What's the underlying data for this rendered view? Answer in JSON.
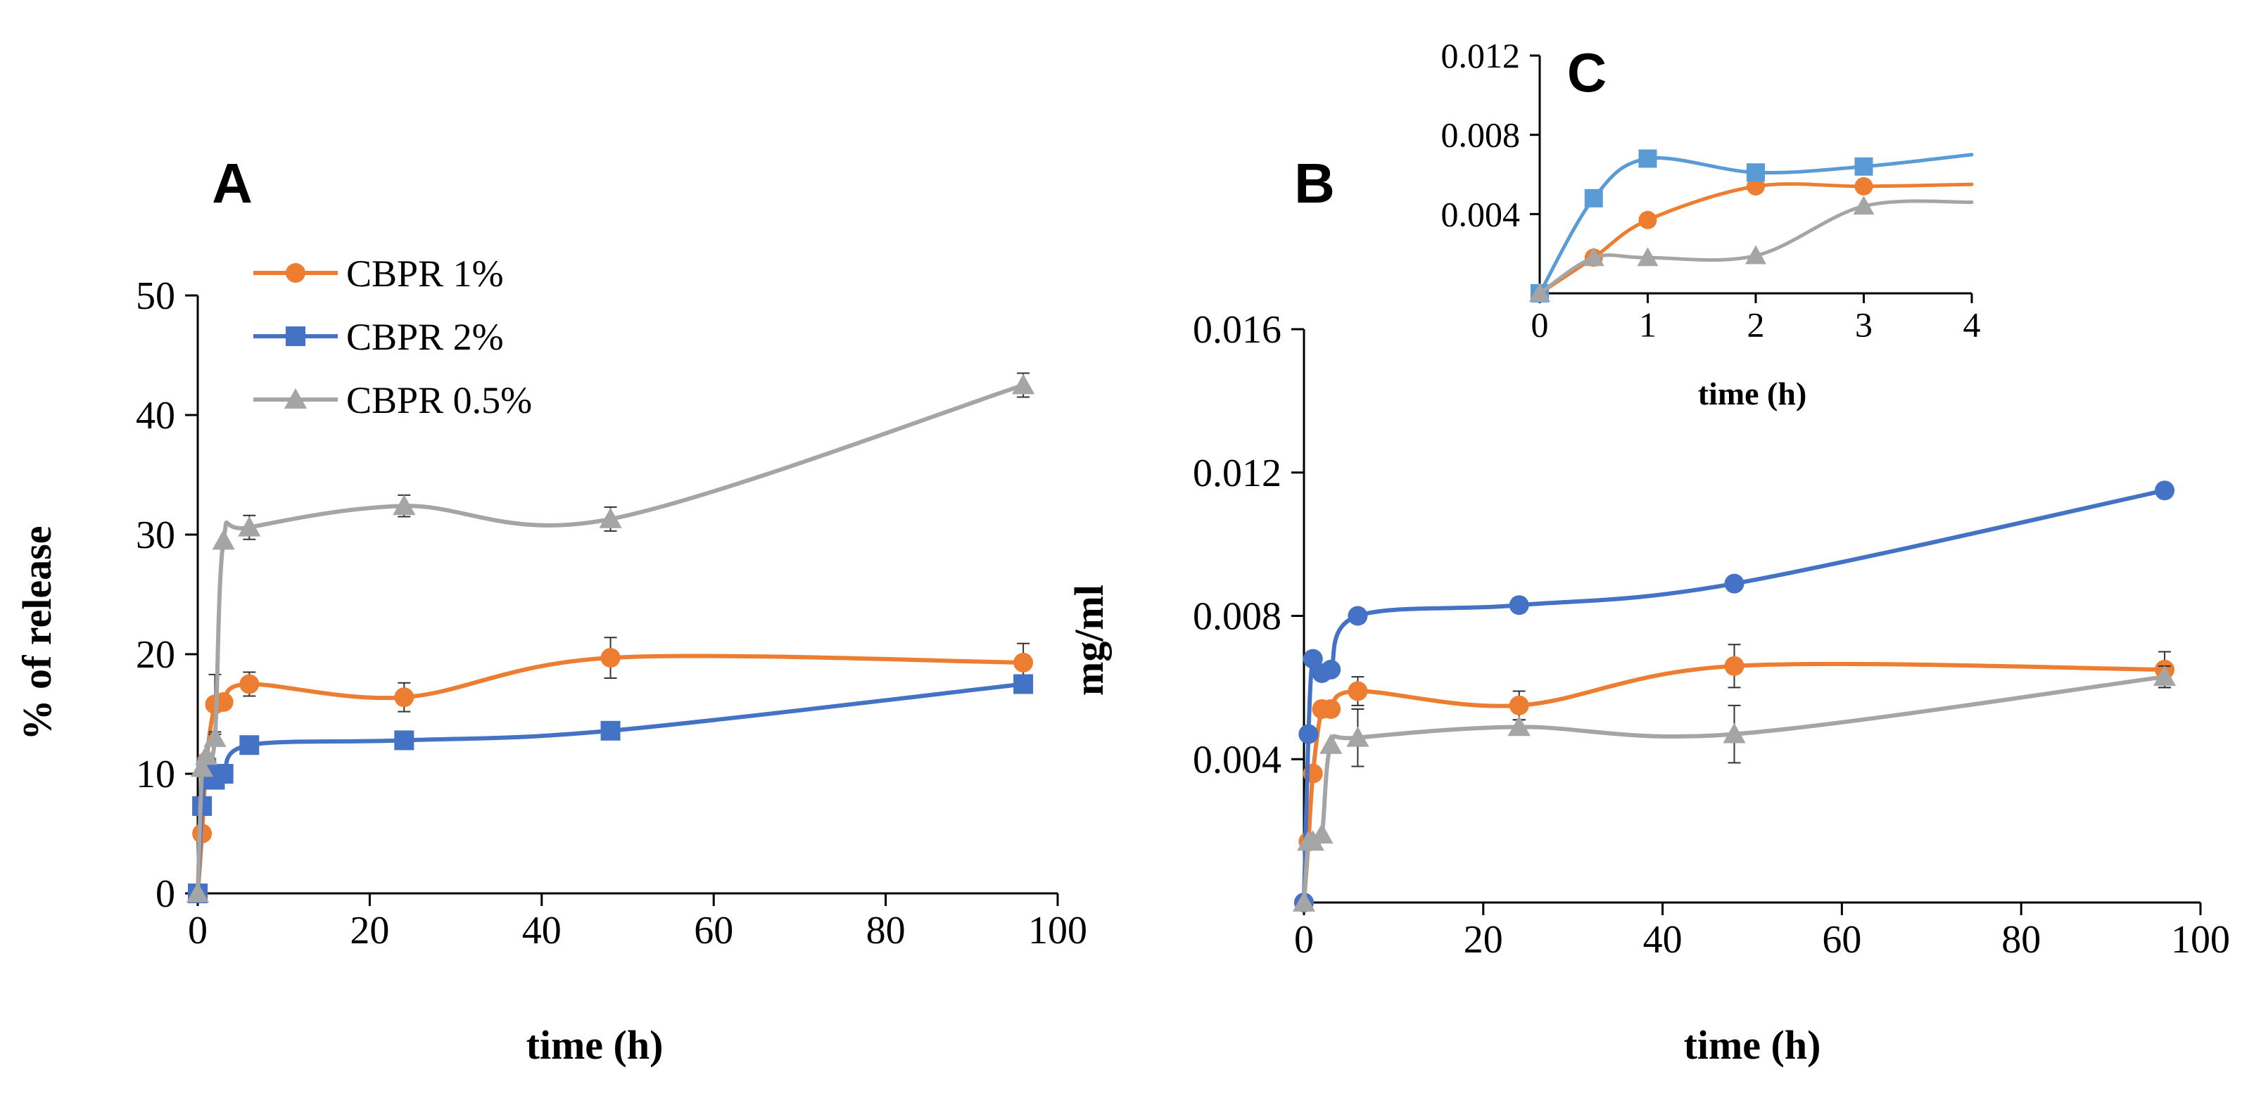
{
  "chart_data": [
    {
      "id": "A",
      "type": "line",
      "panel_label": "A",
      "xlabel": "time (h)",
      "ylabel": "% of release",
      "xlim": [
        0,
        100
      ],
      "ylim": [
        0,
        50
      ],
      "xticks": [
        0,
        20,
        40,
        60,
        80,
        100
      ],
      "yticks": [
        0,
        10,
        20,
        30,
        40,
        50
      ],
      "grid": false,
      "legend_position": "top-left",
      "x": [
        0,
        0.5,
        1,
        2,
        3,
        6,
        24,
        48,
        96
      ],
      "series": [
        {
          "name": "CBPR 1%",
          "color": "#ED7D31",
          "marker": "circle",
          "values": [
            0,
            5,
            11,
            15.8,
            16,
            17.5,
            16.4,
            19.7,
            19.3
          ],
          "errors": [
            0,
            0,
            0,
            2.5,
            0,
            1.0,
            1.2,
            1.7,
            1.6
          ]
        },
        {
          "name": "CBPR 2%",
          "color": "#4472C4",
          "marker": "square",
          "values": [
            0,
            7.3,
            10.5,
            9.5,
            10,
            12.4,
            12.8,
            13.6,
            17.5
          ],
          "errors": [
            0,
            0,
            0,
            0.5,
            0,
            0.4,
            0.4,
            0.5,
            0.6
          ]
        },
        {
          "name": "CBPR 0.5%",
          "color": "#A5A5A5",
          "marker": "triangle",
          "values": [
            0,
            10.5,
            11.5,
            13,
            29.5,
            30.6,
            32.4,
            31.3,
            42.5
          ],
          "errors": [
            0,
            0,
            0,
            0.5,
            0,
            1.0,
            0.9,
            1.0,
            1.0
          ]
        }
      ]
    },
    {
      "id": "B",
      "type": "line",
      "panel_label": "B",
      "xlabel": "time (h)",
      "ylabel": "mg/ml",
      "xlim": [
        0,
        100
      ],
      "ylim": [
        0,
        0.016
      ],
      "xticks": [
        0,
        20,
        40,
        60,
        80,
        100
      ],
      "yticks": [
        0.004,
        0.008,
        0.012,
        0.016
      ],
      "ytick_labels": [
        "0.004",
        "0.008",
        "0.012",
        "0.016"
      ],
      "grid": false,
      "x": [
        0,
        0.5,
        1,
        2,
        3,
        6,
        24,
        48,
        96
      ],
      "series": [
        {
          "name": "CBPR 1%",
          "color": "#ED7D31",
          "marker": "circle",
          "values": [
            0,
            0.0017,
            0.0036,
            0.0054,
            0.0054,
            0.0059,
            0.0055,
            0.0066,
            0.0065
          ],
          "errors": [
            0,
            0,
            0,
            0,
            0,
            0.0004,
            0.0004,
            0.0006,
            0.0005
          ]
        },
        {
          "name": "CBPR 2%",
          "color": "#4472C4",
          "marker": "circle",
          "values": [
            0,
            0.0047,
            0.0068,
            0.0064,
            0.0065,
            0.008,
            0.0083,
            0.0089,
            0.0115
          ],
          "errors": [
            0,
            0,
            0,
            0,
            0,
            0.0002,
            0.0002,
            0.0002,
            0.0002
          ]
        },
        {
          "name": "CBPR 0.5%",
          "color": "#A5A5A5",
          "marker": "triangle",
          "values": [
            0,
            0.0017,
            0.0017,
            0.0019,
            0.0044,
            0.0046,
            0.0049,
            0.0047,
            0.0063
          ],
          "errors": [
            0,
            0,
            0,
            0,
            0,
            0.0008,
            0.0002,
            0.0008,
            0.0003
          ]
        }
      ]
    },
    {
      "id": "C",
      "type": "line",
      "panel_label": "C",
      "xlabel": "time (h)",
      "ylabel": "",
      "xlim": [
        0,
        4
      ],
      "ylim": [
        0,
        0.012
      ],
      "xticks": [
        0,
        1,
        2,
        3,
        4
      ],
      "yticks": [
        0.004,
        0.008,
        0.012
      ],
      "ytick_labels": [
        "0.004",
        "0.008",
        "0.012"
      ],
      "grid": false,
      "series": [
        {
          "name": "CBPR 1%",
          "color": "#ED7D31",
          "marker": "circle",
          "x": [
            0,
            0.5,
            1,
            2,
            3,
            4
          ],
          "values": [
            0,
            0.0018,
            0.0037,
            0.0054,
            0.0054,
            0.0055
          ],
          "marker_count": 5
        },
        {
          "name": "CBPR 2%",
          "color": "#5B9BD5",
          "marker": "square",
          "x": [
            0,
            0.5,
            1,
            2,
            3,
            4
          ],
          "values": [
            0,
            0.0048,
            0.0068,
            0.0061,
            0.0064,
            0.007
          ],
          "marker_count": 5
        },
        {
          "name": "CBPR 0.5%",
          "color": "#A5A5A5",
          "marker": "triangle",
          "x": [
            0,
            0.5,
            1,
            2,
            3,
            4
          ],
          "values": [
            0,
            0.0018,
            0.0018,
            0.0019,
            0.0044,
            0.0046
          ],
          "marker_count": 5
        }
      ]
    }
  ]
}
